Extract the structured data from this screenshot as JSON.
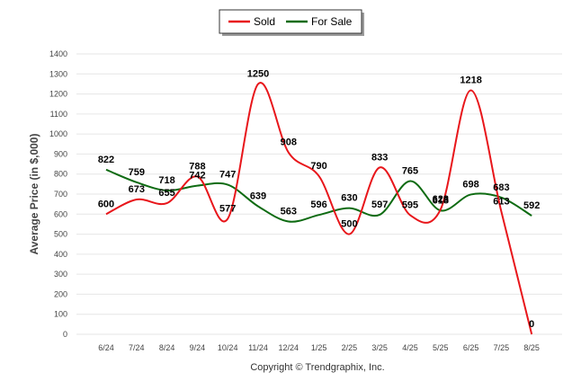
{
  "chart_data": {
    "type": "line",
    "title": "",
    "xlabel": "",
    "ylabel": "Average Price (in $,000)",
    "ylim": [
      0,
      1400
    ],
    "yticks": [
      0,
      100,
      200,
      300,
      400,
      500,
      600,
      700,
      800,
      900,
      1000,
      1100,
      1200,
      1300,
      1400
    ],
    "grid": true,
    "legend": "top-center",
    "categories": [
      "6/24",
      "7/24",
      "8/24",
      "9/24",
      "10/24",
      "11/24",
      "12/24",
      "1/25",
      "2/25",
      "3/25",
      "4/25",
      "5/25",
      "6/25",
      "7/25",
      "8/25"
    ],
    "series": [
      {
        "name": "Sold",
        "color": "#e8161b",
        "values": [
          600,
          673,
          655,
          788,
          577,
          1250,
          908,
          790,
          500,
          833,
          595,
          623,
          1218,
          613,
          0
        ]
      },
      {
        "name": "For Sale",
        "color": "#0e6b12",
        "values": [
          822,
          759,
          718,
          742,
          747,
          639,
          563,
          596,
          630,
          597,
          765,
          618,
          698,
          683,
          592
        ]
      }
    ]
  },
  "footer": {
    "copyright": "Copyright © Trendgraphix, Inc."
  }
}
